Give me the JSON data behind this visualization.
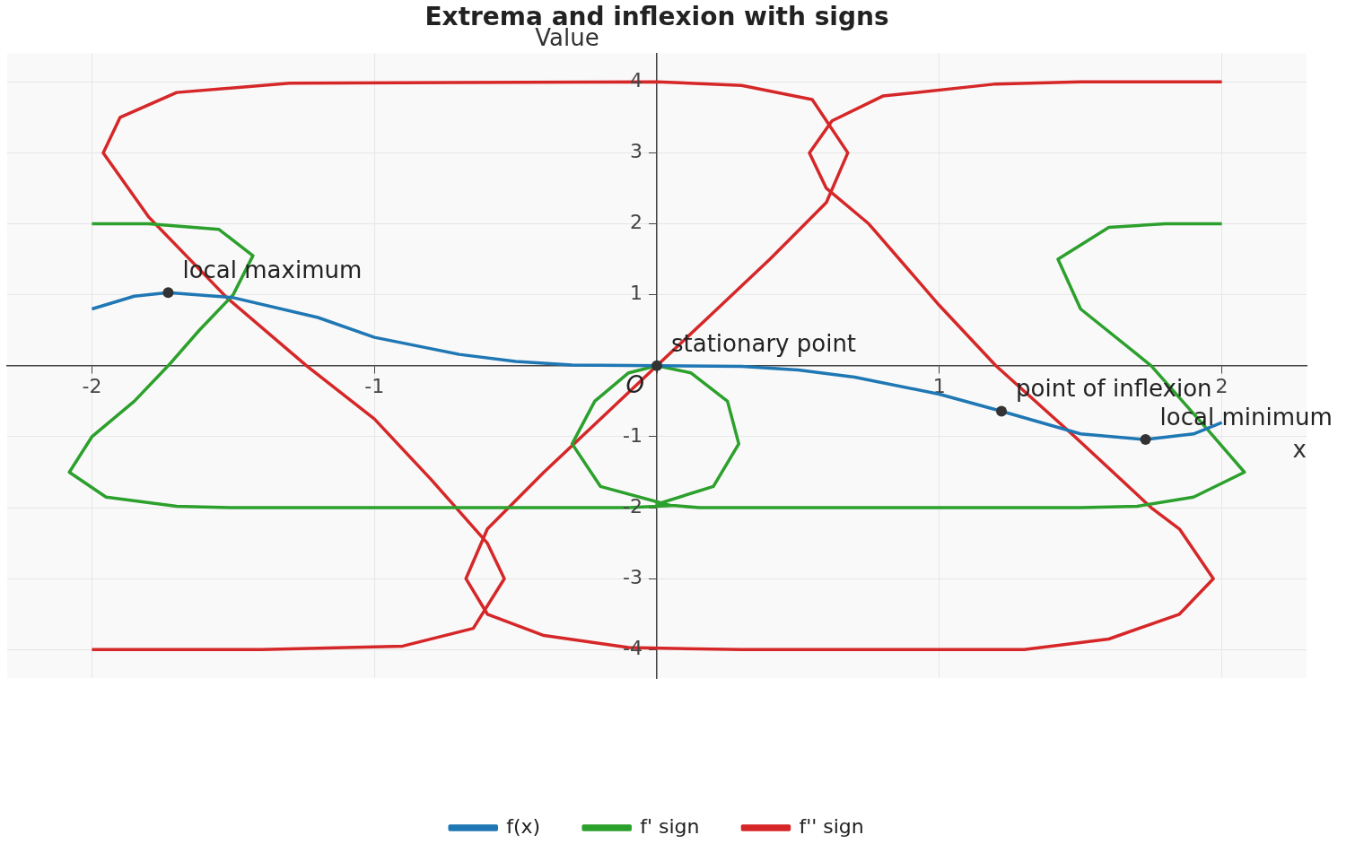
{
  "chart_data": {
    "type": "line",
    "title": "Extrema and inflexion with signs",
    "xlabel": "x",
    "ylabel": "Value",
    "xlim": [
      -2.3,
      2.3
    ],
    "ylim": [
      -4.4,
      4.4
    ],
    "xticks": [
      -2,
      -1,
      {
        "value": 0,
        "label": null
      },
      1,
      2
    ],
    "yticks": [
      -4,
      -3,
      -2,
      -1,
      {
        "value": 0,
        "label": null
      },
      1,
      2,
      3,
      4
    ],
    "grid": true,
    "legend": "bottom",
    "marker": "none",
    "series": [
      {
        "name": "f(x)",
        "color": "#1f77b4",
        "x": [
          -2,
          -1.85,
          -1.73,
          -1.5,
          -1.2,
          -1,
          -0.7,
          -0.5,
          -0.3,
          0,
          0.3,
          0.5,
          0.7,
          1,
          1.22,
          1.5,
          1.73,
          1.9,
          2
        ],
        "values": [
          0.8,
          0.98,
          1.03,
          0.96,
          0.68,
          0.4,
          0.16,
          0.06,
          0.01,
          0,
          -0.01,
          -0.06,
          -0.16,
          -0.4,
          -0.64,
          -0.96,
          -1.04,
          -0.96,
          -0.8
        ]
      },
      {
        "name": "f' sign",
        "color": "#2ca02c",
        "x": [
          -2,
          -1.8,
          -1.55,
          -1.43,
          -1.5,
          -1.62,
          -1.73,
          -1.85,
          -2,
          -2.08,
          -1.95,
          -1.7,
          -1.5,
          -0.1,
          0.05,
          -0.2,
          -0.3,
          -0.22,
          -0.1,
          0,
          0.12,
          0.25,
          0.29,
          0.2,
          0,
          0.15,
          1.5,
          1.7,
          1.9,
          2.08,
          1.95,
          1.75,
          1.5,
          1.42,
          1.6,
          1.8,
          2
        ],
        "values": [
          2,
          2,
          1.92,
          1.55,
          1,
          0.5,
          0,
          -0.5,
          -1,
          -1.5,
          -1.85,
          -1.98,
          -2,
          -2,
          -1.97,
          -1.7,
          -1.1,
          -0.5,
          -0.1,
          0,
          -0.1,
          -0.5,
          -1.1,
          -1.7,
          -1.95,
          -2,
          -2,
          -1.98,
          -1.85,
          -1.5,
          -0.9,
          0,
          0.8,
          1.5,
          1.95,
          2,
          2
        ]
      },
      {
        "name": "f'' sign",
        "color": "#d62728",
        "x": [
          -2,
          -1.4,
          -0.9,
          -0.65,
          -0.54,
          -0.6,
          -0.8,
          -1,
          -1.24,
          -1.52,
          -1.8,
          -1.96,
          -1.9,
          -1.7,
          -1.3,
          0,
          0.3,
          0.55,
          0.676,
          0.6,
          0.4,
          0.2,
          0,
          -0.2,
          -0.4,
          -0.6,
          -0.676,
          -0.6,
          -0.4,
          -0.1,
          0.3,
          1.3,
          1.6,
          1.85,
          1.97,
          1.85,
          1.75,
          1.48,
          1.2,
          1,
          0.75,
          0.6,
          0.54,
          0.62,
          0.8,
          1.2,
          1.5,
          2
        ],
        "values": [
          -4,
          -4,
          -3.95,
          -3.7,
          -3,
          -2.5,
          -1.6,
          -0.75,
          0,
          0.95,
          2.1,
          3,
          3.5,
          3.85,
          3.98,
          4,
          3.95,
          3.75,
          3,
          2.3,
          1.5,
          0.75,
          0,
          -0.75,
          -1.5,
          -2.3,
          -3,
          -3.5,
          -3.8,
          -3.97,
          -4,
          -4,
          -3.85,
          -3.5,
          -3,
          -2.3,
          -2,
          -1,
          0,
          0.85,
          2,
          2.5,
          3,
          3.45,
          3.8,
          3.97,
          4,
          4
        ]
      },
      {
        "type": "scatter",
        "marker": "circle",
        "color": "#333333",
        "x": [
          -1.73,
          0,
          1.22,
          1.73
        ],
        "values": [
          1.03,
          0,
          -0.64,
          -1.04
        ]
      }
    ],
    "annotations": [
      {
        "text": "local maximum",
        "x": -1.73,
        "y": 1.03
      },
      {
        "text": "stationary point",
        "x": 0,
        "y": 0
      },
      {
        "text": "point of inflexion",
        "x": 1.22,
        "y": -0.64
      },
      {
        "text": "local minimum",
        "x": 1.73,
        "y": -1.04
      },
      {
        "text": "O",
        "x": 0,
        "y": 0
      }
    ]
  }
}
